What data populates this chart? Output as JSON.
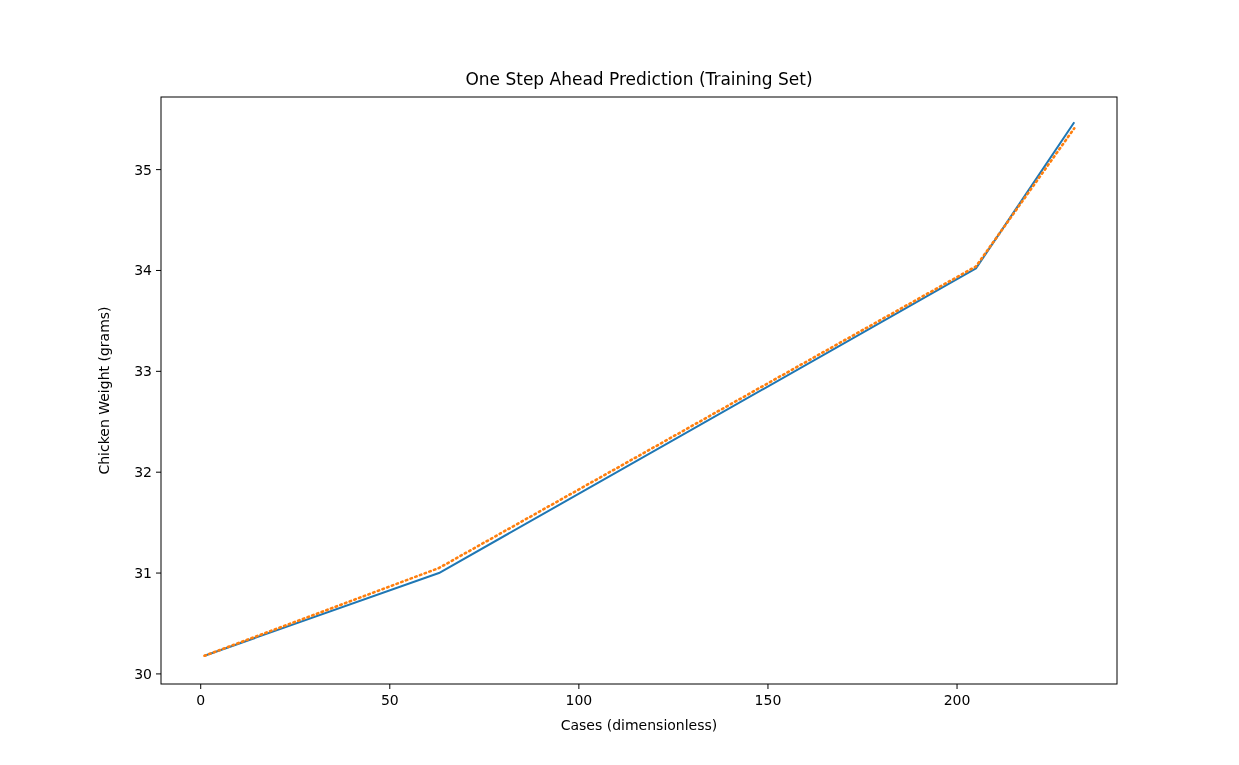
{
  "chart_data": {
    "type": "line",
    "title": "One Step Ahead Prediction (Training Set)",
    "xlabel": "Cases (dimensionless)",
    "ylabel": "Chicken Weight (grams)",
    "xlim": [
      -10.5,
      242.3
    ],
    "xticks": [
      0,
      50,
      100,
      150,
      200
    ],
    "ylim": [
      29.9,
      35.72
    ],
    "yticks": [
      30,
      31,
      32,
      33,
      34,
      35
    ],
    "grid": false,
    "series": [
      {
        "color": "#1f77b4",
        "line_style": "solid",
        "x": [
          1,
          63,
          205,
          231
        ],
        "values": [
          30.18,
          31.0,
          34.02,
          35.47
        ]
      },
      {
        "color": "#ff7f0e",
        "line_style": "dotted",
        "x": [
          1,
          63,
          205,
          231
        ],
        "values": [
          30.18,
          31.05,
          34.04,
          35.41
        ]
      }
    ]
  }
}
